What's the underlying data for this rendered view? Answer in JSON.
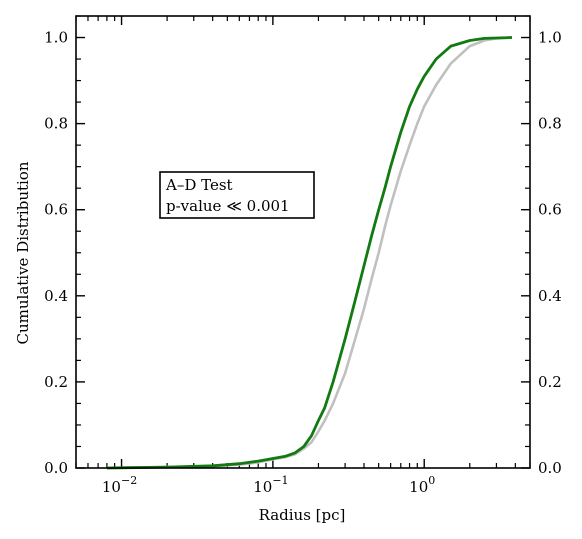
{
  "chart_data": {
    "type": "line",
    "xlabel": "Radius [pc]",
    "ylabel": "Cumulative Distribution",
    "xscale": "log",
    "xlim": [
      0.005,
      5.0
    ],
    "ylim": [
      0.0,
      1.05
    ],
    "x_ticks": [
      {
        "value": 0.01,
        "base": "10",
        "exp": "−2"
      },
      {
        "value": 0.1,
        "base": "10",
        "exp": "−1"
      },
      {
        "value": 1.0,
        "base": "10",
        "exp": "0"
      }
    ],
    "y_ticks": [
      "0.0",
      "0.2",
      "0.4",
      "0.6",
      "0.8",
      "1.0"
    ],
    "grid": false,
    "annotation": {
      "lines": [
        "A–D Test",
        "p-value ≪ 0.001"
      ]
    },
    "series": [
      {
        "color": "#c0c0c0",
        "points": [
          [
            0.008,
            0.0
          ],
          [
            0.02,
            0.002
          ],
          [
            0.04,
            0.004
          ],
          [
            0.06,
            0.008
          ],
          [
            0.08,
            0.013
          ],
          [
            0.1,
            0.02
          ],
          [
            0.12,
            0.025
          ],
          [
            0.14,
            0.032
          ],
          [
            0.16,
            0.045
          ],
          [
            0.18,
            0.06
          ],
          [
            0.2,
            0.085
          ],
          [
            0.22,
            0.11
          ],
          [
            0.25,
            0.15
          ],
          [
            0.3,
            0.22
          ],
          [
            0.35,
            0.3
          ],
          [
            0.4,
            0.37
          ],
          [
            0.45,
            0.44
          ],
          [
            0.5,
            0.5
          ],
          [
            0.55,
            0.56
          ],
          [
            0.6,
            0.61
          ],
          [
            0.7,
            0.69
          ],
          [
            0.8,
            0.75
          ],
          [
            0.9,
            0.8
          ],
          [
            1.0,
            0.84
          ],
          [
            1.2,
            0.89
          ],
          [
            1.5,
            0.94
          ],
          [
            2.0,
            0.98
          ],
          [
            2.5,
            0.993
          ],
          [
            3.0,
            0.998
          ],
          [
            3.8,
            1.0
          ]
        ]
      },
      {
        "color": "#117a11",
        "points": [
          [
            0.008,
            0.0
          ],
          [
            0.02,
            0.002
          ],
          [
            0.04,
            0.005
          ],
          [
            0.06,
            0.01
          ],
          [
            0.08,
            0.016
          ],
          [
            0.1,
            0.022
          ],
          [
            0.12,
            0.027
          ],
          [
            0.14,
            0.035
          ],
          [
            0.16,
            0.05
          ],
          [
            0.18,
            0.075
          ],
          [
            0.2,
            0.11
          ],
          [
            0.22,
            0.14
          ],
          [
            0.25,
            0.2
          ],
          [
            0.3,
            0.3
          ],
          [
            0.35,
            0.39
          ],
          [
            0.4,
            0.47
          ],
          [
            0.45,
            0.54
          ],
          [
            0.5,
            0.6
          ],
          [
            0.55,
            0.65
          ],
          [
            0.6,
            0.7
          ],
          [
            0.7,
            0.78
          ],
          [
            0.8,
            0.84
          ],
          [
            0.9,
            0.88
          ],
          [
            1.0,
            0.91
          ],
          [
            1.2,
            0.95
          ],
          [
            1.5,
            0.98
          ],
          [
            2.0,
            0.993
          ],
          [
            2.5,
            0.998
          ],
          [
            3.8,
            1.0
          ]
        ]
      }
    ]
  }
}
